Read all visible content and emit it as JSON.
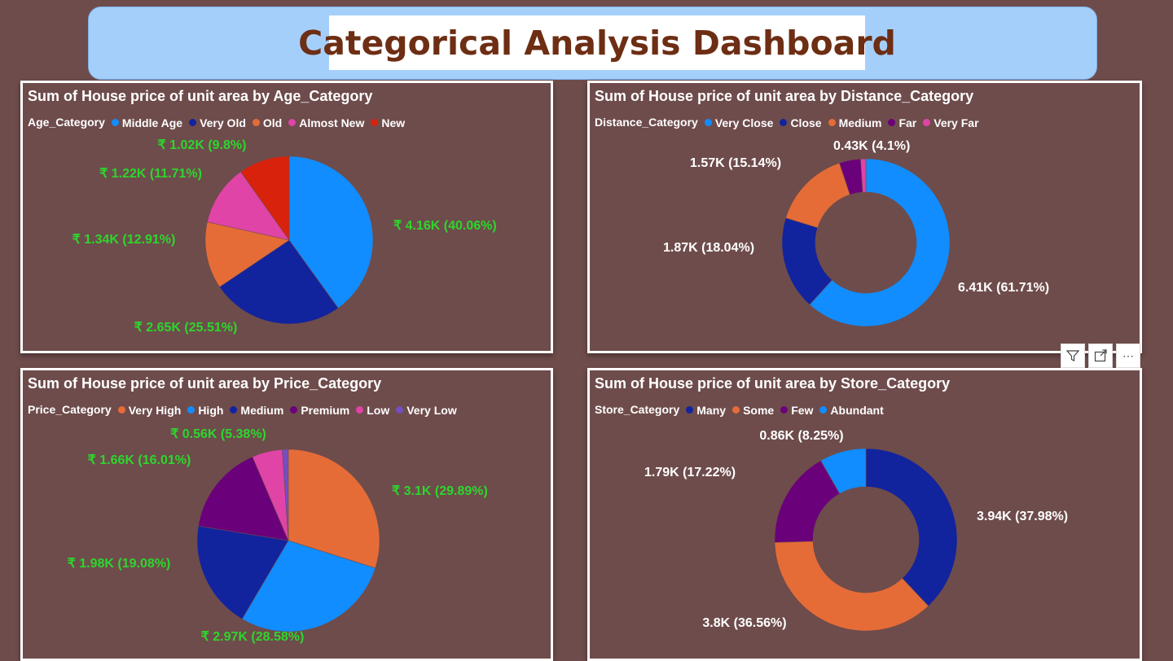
{
  "header": {
    "title": "Categorical Analysis Dashboard"
  },
  "toolbar": {
    "icons": [
      "filter-icon",
      "focus-mode-icon",
      "more-options-icon"
    ],
    "more_glyph": "⋯"
  },
  "chart_data": [
    {
      "type": "pie",
      "title": "Sum of House price of unit area by Age_Category",
      "legend_title": "Age_Category",
      "categories": [
        "Middle Age",
        "Very Old",
        "Old",
        "Almost New",
        "New"
      ],
      "values": [
        40.06,
        25.51,
        12.91,
        11.71,
        9.8
      ],
      "labels": [
        "₹ 4.16K (40.06%)",
        "₹ 2.65K (25.51%)",
        "₹ 1.34K (12.91%)",
        "₹ 1.22K (11.71%)",
        "₹ 1.02K (9.8%)"
      ],
      "colors": [
        "#118dff",
        "#12239e",
        "#e66c37",
        "#e044a7",
        "#d9220c"
      ],
      "label_color": "#2dd62d",
      "legend_placement": "top-left"
    },
    {
      "type": "donut",
      "title": "Sum of House price of unit area by Distance_Category",
      "legend_title": "Distance_Category",
      "categories": [
        "Very Close",
        "Close",
        "Medium",
        "Far",
        "Very Far"
      ],
      "values": [
        61.71,
        18.04,
        15.14,
        4.1,
        1.01
      ],
      "labels": [
        "6.41K (61.71%)",
        "1.87K (18.04%)",
        "1.57K (15.14%)",
        "0.43K (4.1%)",
        ""
      ],
      "colors": [
        "#118dff",
        "#12239e",
        "#e66c37",
        "#6b007b",
        "#e044a7"
      ],
      "label_color": "#ffffff",
      "legend_placement": "top-left"
    },
    {
      "type": "pie",
      "title": "Sum of House price of unit area by Price_Category",
      "legend_title": "Price_Category",
      "categories": [
        "Very High",
        "High",
        "Medium",
        "Premium",
        "Low",
        "Very Low"
      ],
      "values": [
        29.89,
        28.58,
        19.08,
        16.01,
        5.38,
        1.06
      ],
      "labels": [
        "₹ 3.1K (29.89%)",
        "₹ 2.97K (28.58%)",
        "₹ 1.98K (19.08%)",
        "₹ 1.66K (16.01%)",
        "₹ 0.56K (5.38%)",
        ""
      ],
      "colors": [
        "#e66c37",
        "#118dff",
        "#12239e",
        "#6b007b",
        "#e044a7",
        "#744ec2"
      ],
      "label_color": "#2dd62d",
      "legend_placement": "top-left"
    },
    {
      "type": "donut",
      "title": "Sum of House price of unit area by Store_Category",
      "legend_title": "Store_Category",
      "categories": [
        "Many",
        "Some",
        "Few",
        "Abundant"
      ],
      "values": [
        37.98,
        36.56,
        17.22,
        8.25
      ],
      "labels": [
        "3.94K (37.98%)",
        "3.8K (36.56%)",
        "1.79K (17.22%)",
        "0.86K (8.25%)"
      ],
      "colors": [
        "#12239e",
        "#e66c37",
        "#6b007b",
        "#118dff"
      ],
      "label_color": "#ffffff",
      "legend_placement": "top-left"
    }
  ]
}
